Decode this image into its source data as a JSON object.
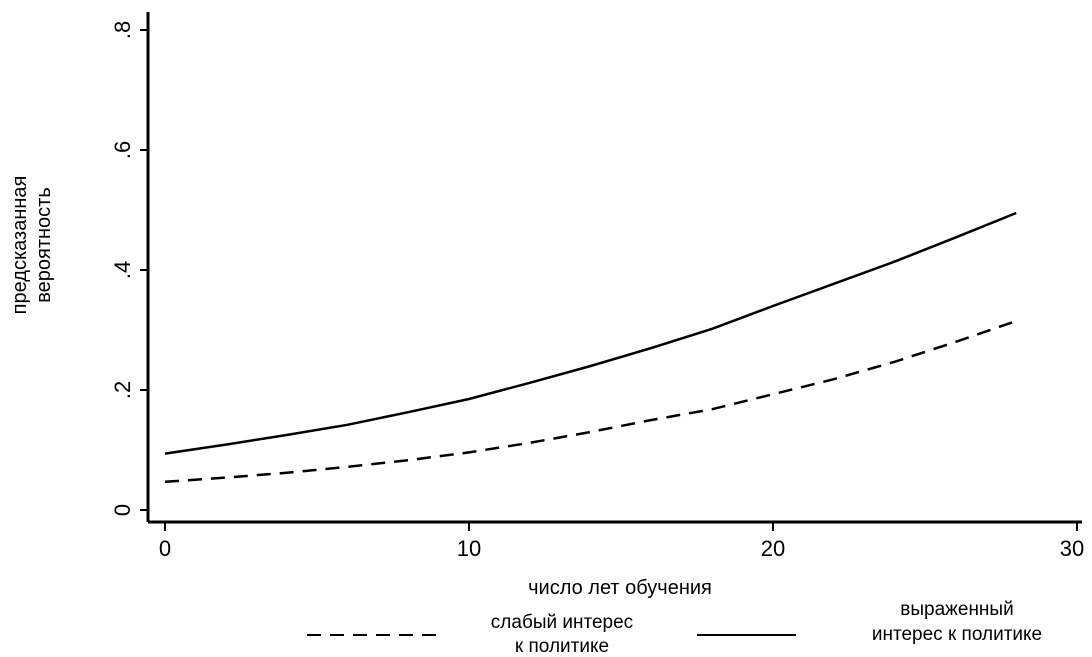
{
  "chart_data": {
    "type": "line",
    "title": "",
    "xlabel": "число лет обучения",
    "ylabel_lines": [
      "предсказанная",
      "вероятность"
    ],
    "xlim": [
      0,
      30
    ],
    "ylim": [
      0,
      0.8
    ],
    "x_ticks": [
      {
        "value": 0,
        "label": "0"
      },
      {
        "value": 10,
        "label": "10"
      },
      {
        "value": 20,
        "label": "20"
      },
      {
        "value": 30,
        "label": "30"
      }
    ],
    "y_ticks": [
      {
        "value": 0,
        "label": "0"
      },
      {
        "value": 0.2,
        "label": ".2"
      },
      {
        "value": 0.4,
        "label": ".4"
      },
      {
        "value": 0.6,
        "label": ".6"
      },
      {
        "value": 0.8,
        "label": ".8"
      }
    ],
    "grid": false,
    "legend_position": "bottom",
    "series": [
      {
        "name": "слабый интерес к политике",
        "name_lines": [
          "слабый интерес",
          "к политике"
        ],
        "style": "dashed",
        "color": "#000000",
        "x": [
          0,
          2,
          4,
          6,
          8,
          10,
          12,
          14,
          16,
          18,
          20,
          22,
          24,
          26,
          28
        ],
        "y": [
          0.047,
          0.054,
          0.062,
          0.072,
          0.083,
          0.096,
          0.112,
          0.13,
          0.15,
          0.168,
          0.193,
          0.218,
          0.247,
          0.28,
          0.315
        ]
      },
      {
        "name": "выраженный интерес к политике",
        "name_lines": [
          "выраженный",
          "интерес к политике"
        ],
        "style": "solid",
        "color": "#000000",
        "x": [
          0,
          2,
          4,
          6,
          8,
          10,
          12,
          14,
          16,
          18,
          20,
          22,
          24,
          26,
          28
        ],
        "y": [
          0.094,
          0.109,
          0.125,
          0.142,
          0.163,
          0.185,
          0.212,
          0.24,
          0.27,
          0.302,
          0.34,
          0.377,
          0.414,
          0.454,
          0.495
        ]
      }
    ]
  }
}
